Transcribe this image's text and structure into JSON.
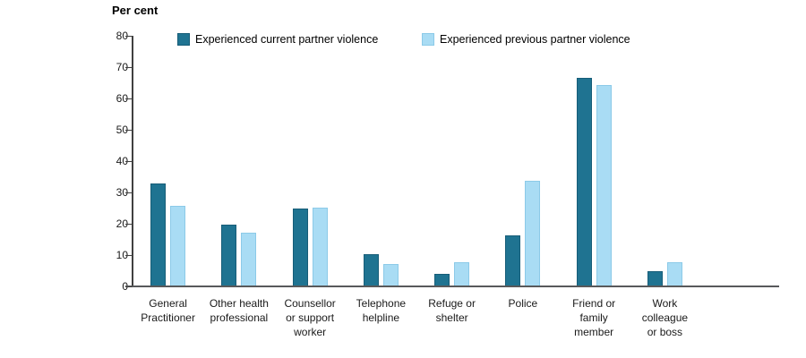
{
  "chart_data": {
    "type": "bar",
    "title": "",
    "ylabel": "Per cent",
    "xlabel": "",
    "ylim": [
      0,
      80
    ],
    "yticks": [
      0,
      10,
      20,
      30,
      40,
      50,
      60,
      70,
      80
    ],
    "grid": false,
    "legend_position": "top",
    "axis_color": "#404040",
    "baseline_color": "#58595B",
    "categories": [
      "General Practitioner",
      "Other health professional",
      "Counsellor or support worker",
      "Telephone helpline",
      "Refuge or shelter",
      "Police",
      "Friend or family member",
      "Work colleague or boss"
    ],
    "category_lines": [
      [
        "General",
        "Practitioner"
      ],
      [
        "Other health",
        "professional"
      ],
      [
        "Counsellor",
        "or support",
        "worker"
      ],
      [
        "Telephone",
        "helpline"
      ],
      [
        "Refuge or",
        "shelter"
      ],
      [
        "Police"
      ],
      [
        "Friend or",
        "family",
        "member"
      ],
      [
        "Work",
        "colleague",
        "or boss"
      ]
    ],
    "series": [
      {
        "name": "Experienced current partner violence",
        "color": "#1F7391",
        "border_color": "#175D78",
        "values": [
          33.0,
          19.7,
          24.8,
          10.4,
          4.0,
          16.4,
          66.5,
          4.8
        ]
      },
      {
        "name": "Experienced previous partner violence",
        "color": "#A9DCF4",
        "border_color": "#8CCAE8",
        "values": [
          25.8,
          17.2,
          25.1,
          7.2,
          7.6,
          33.7,
          64.4,
          7.7
        ]
      }
    ]
  }
}
